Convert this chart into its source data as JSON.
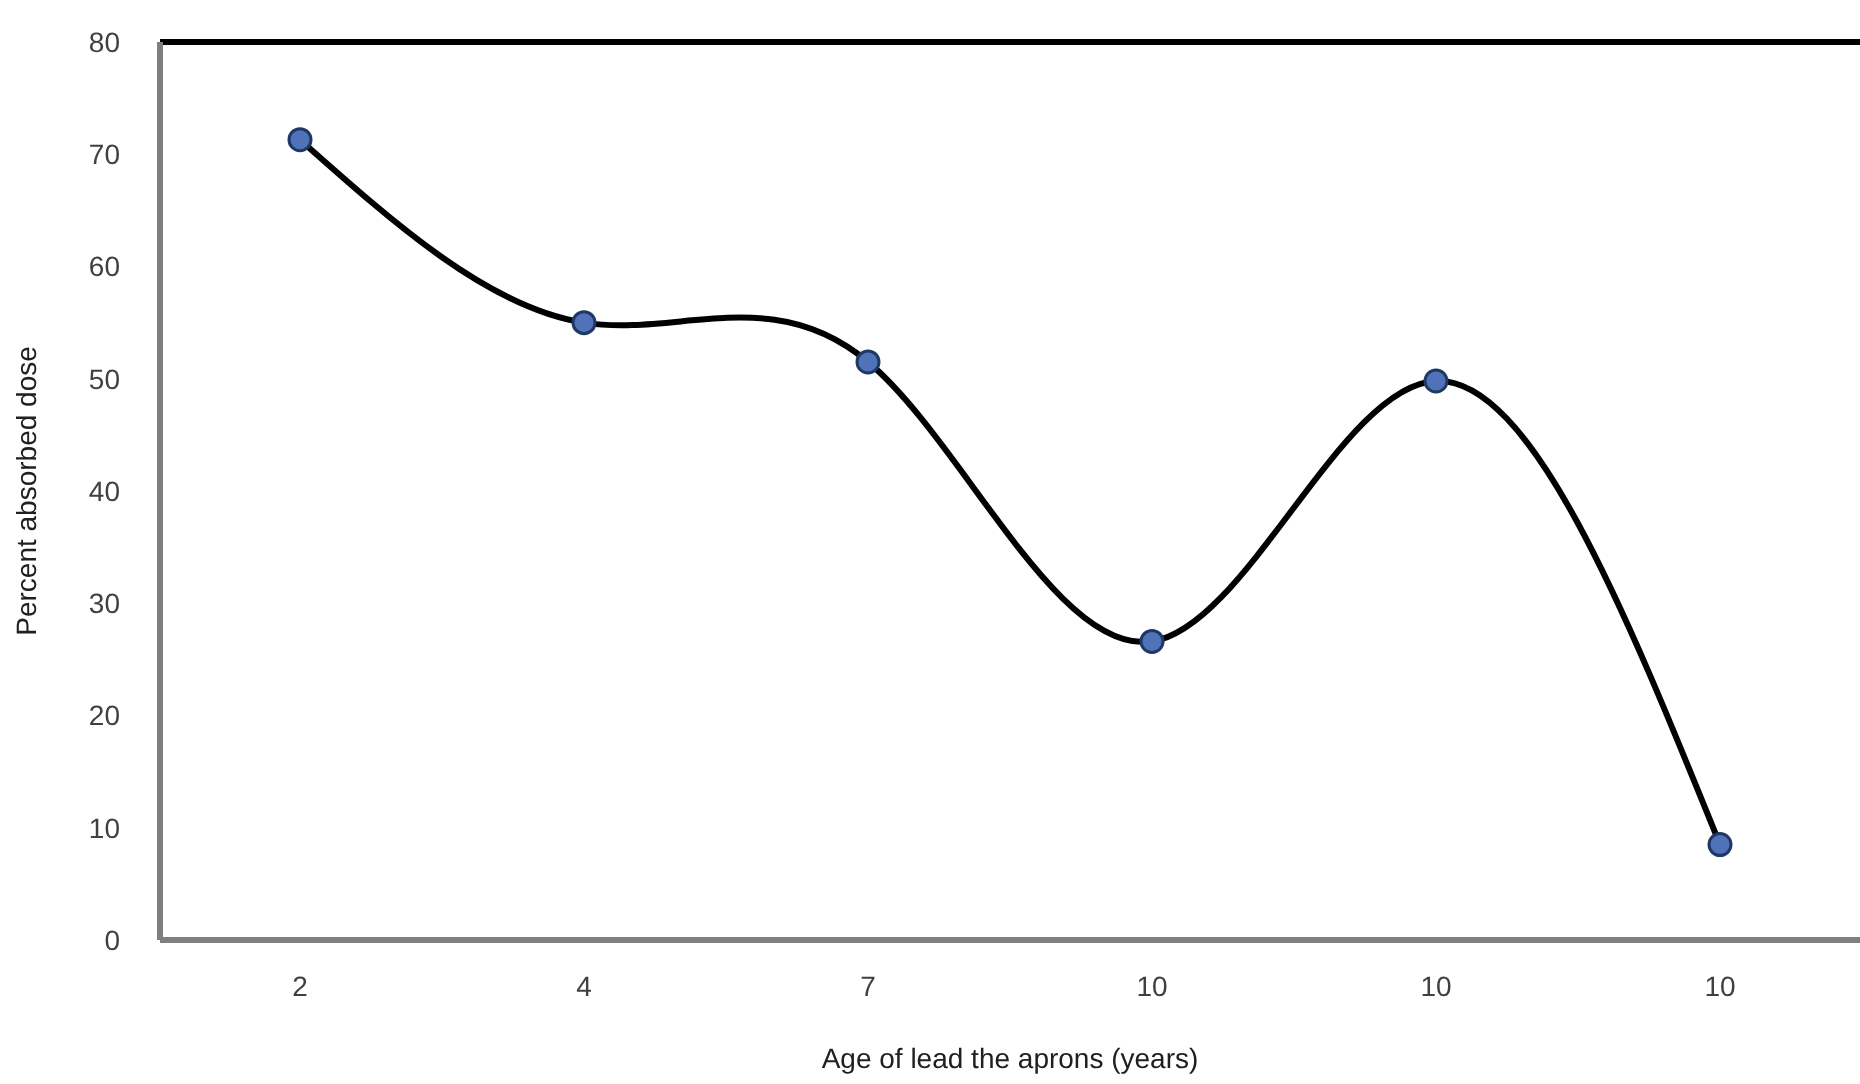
{
  "chart_data": {
    "type": "line",
    "xlabel": "Age of lead the aprons (years)",
    "ylabel": "Percent absorbed dose",
    "categories": [
      "2",
      "4",
      "7",
      "10",
      "10",
      "10"
    ],
    "series": [
      {
        "color": "#000000",
        "values": [
          71.3,
          55,
          51.5,
          26.6,
          49.8,
          8.5
        ]
      }
    ],
    "ylim": [
      0,
      80
    ],
    "yticks": [
      0,
      10,
      20,
      30,
      40,
      50,
      60,
      70,
      80
    ],
    "grid": false,
    "legend": false,
    "marker": "circle",
    "line_style": "solid"
  }
}
